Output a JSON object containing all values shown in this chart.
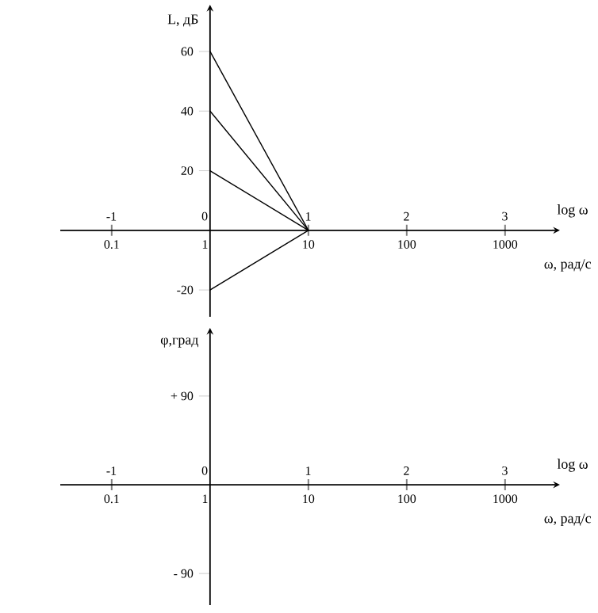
{
  "chart_data": [
    {
      "type": "line",
      "ylabel": "L, дБ",
      "xlabel": "ω, рад/с",
      "x2label": "log ω",
      "log": "x",
      "xlim": [
        0.03,
        3000
      ],
      "ylim": [
        -29,
        73
      ],
      "x2lim": [
        -1.52,
        3.48
      ],
      "xticks": [
        0.1,
        1,
        10,
        100,
        1000
      ],
      "x2ticks": [
        -1,
        0,
        1,
        2,
        3
      ],
      "yticks": [
        -20,
        20,
        40,
        60
      ],
      "x": [
        1,
        10
      ],
      "series": [
        {
          "color": "#000000",
          "values": [
            60,
            0
          ]
        },
        {
          "color": "#000000",
          "values": [
            40,
            0
          ]
        },
        {
          "color": "#000000",
          "values": [
            20,
            0
          ]
        },
        {
          "color": "#000000",
          "values": [
            -20,
            0
          ]
        }
      ]
    },
    {
      "type": "line",
      "ylabel": "φ,град",
      "xlabel": "ω, рад/с",
      "x2label": "log ω",
      "log": "x",
      "xlim": [
        0.03,
        3000
      ],
      "ylim": [
        -122,
        151
      ],
      "x2lim": [
        -1.52,
        3.48
      ],
      "xticks": [
        0.1,
        1,
        10,
        100,
        1000
      ],
      "x2ticks": [
        -1,
        0,
        1,
        2,
        3
      ],
      "yticks": [
        {
          "value": 90,
          "label": "+ 90"
        },
        {
          "value": -90,
          "label": "- 90"
        }
      ]
    }
  ]
}
